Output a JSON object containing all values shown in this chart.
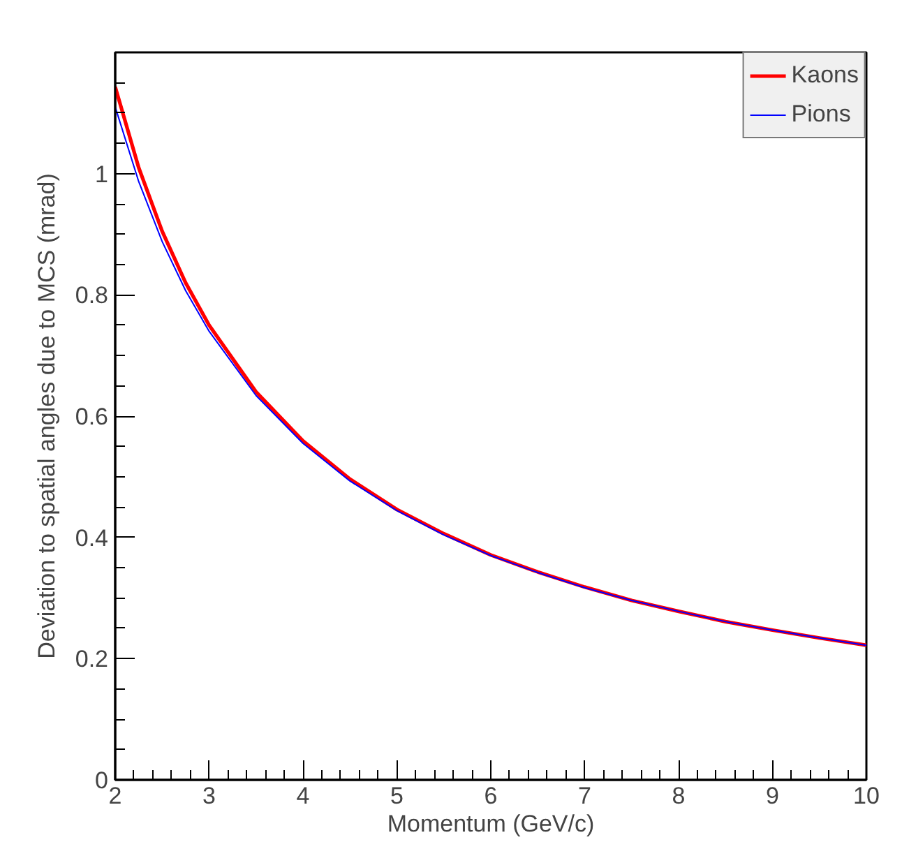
{
  "chart_data": {
    "type": "line",
    "xlabel": "Momentum (GeV/c)",
    "ylabel": "Deviation to spatial angles due to MCS (mrad)",
    "x": [
      2,
      2.25,
      2.5,
      2.75,
      3,
      3.5,
      4,
      4.5,
      5,
      5.5,
      6,
      6.5,
      7,
      7.5,
      8,
      8.5,
      9,
      9.5,
      10
    ],
    "series": [
      {
        "name": "Kaons",
        "color": "#ff0000",
        "values": [
          1.143,
          1.01,
          0.905,
          0.82,
          0.75,
          0.64,
          0.559,
          0.496,
          0.446,
          0.406,
          0.371,
          0.343,
          0.318,
          0.296,
          0.278,
          0.261,
          0.247,
          0.234,
          0.222
        ]
      },
      {
        "name": "Pions",
        "color": "#0000ff",
        "values": [
          1.11,
          0.987,
          0.888,
          0.807,
          0.74,
          0.634,
          0.555,
          0.493,
          0.444,
          0.404,
          0.37,
          0.342,
          0.317,
          0.296,
          0.278,
          0.261,
          0.247,
          0.234,
          0.222
        ]
      }
    ],
    "xlim": [
      2,
      10
    ],
    "xticks": [
      2,
      3,
      4,
      5,
      6,
      7,
      8,
      9,
      10
    ],
    "ylim": [
      0,
      1.2
    ],
    "yticks": [
      0,
      0.2,
      0.4,
      0.6,
      0.8,
      1
    ],
    "grid": false,
    "legend": "top right",
    "marker": "none",
    "line_style": "solid"
  }
}
